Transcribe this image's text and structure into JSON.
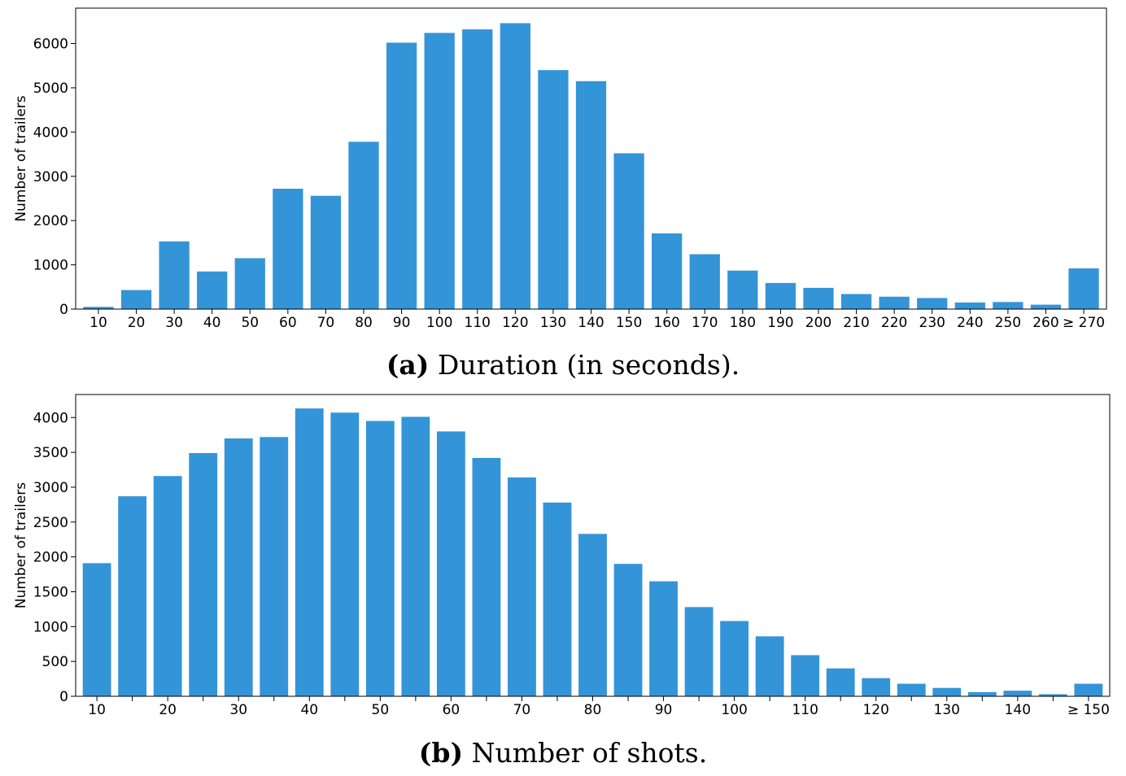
{
  "chart_data": [
    {
      "type": "bar",
      "caption_tag": "(a)",
      "caption_text": "Duration (in seconds).",
      "ylabel": "Number of trailers",
      "xlabel": "",
      "ylim": [
        0,
        6800
      ],
      "yticks": [
        0,
        1000,
        2000,
        3000,
        4000,
        5000,
        6000
      ],
      "bar_color": "#3494d8",
      "categories": [
        "10",
        "20",
        "30",
        "40",
        "50",
        "60",
        "70",
        "80",
        "90",
        "100",
        "110",
        "120",
        "130",
        "140",
        "150",
        "160",
        "170",
        "180",
        "190",
        "200",
        "210",
        "220",
        "230",
        "240",
        "250",
        "260",
        "≥ 270"
      ],
      "tick_labels": [
        "10",
        "20",
        "30",
        "40",
        "50",
        "60",
        "70",
        "80",
        "90",
        "100",
        "110",
        "120",
        "130",
        "140",
        "150",
        "160",
        "170",
        "180",
        "190",
        "200",
        "210",
        "220",
        "230",
        "240",
        "250",
        "260",
        "≥ 270"
      ],
      "values": [
        50,
        430,
        1530,
        850,
        1150,
        2720,
        2560,
        3780,
        6020,
        6240,
        6320,
        6460,
        5400,
        5150,
        3520,
        1710,
        1240,
        870,
        590,
        480,
        340,
        280,
        250,
        150,
        160,
        100,
        920
      ]
    },
    {
      "type": "bar",
      "caption_tag": "(b)",
      "caption_text": "Number of shots.",
      "ylabel": "Number of trailers",
      "xlabel": "",
      "ylim": [
        0,
        4330
      ],
      "yticks": [
        0,
        500,
        1000,
        1500,
        2000,
        2500,
        3000,
        3500,
        4000
      ],
      "bar_color": "#3494d8",
      "categories": [
        "10",
        "15",
        "20",
        "25",
        "30",
        "35",
        "40",
        "45",
        "50",
        "55",
        "60",
        "65",
        "70",
        "75",
        "80",
        "85",
        "90",
        "95",
        "100",
        "105",
        "110",
        "115",
        "120",
        "125",
        "130",
        "135",
        "140",
        "145",
        "≥ 150"
      ],
      "tick_labels": [
        "10",
        "",
        "20",
        "",
        "30",
        "",
        "40",
        "",
        "50",
        "",
        "60",
        "",
        "70",
        "",
        "80",
        "",
        "90",
        "",
        "100",
        "",
        "110",
        "",
        "120",
        "",
        "130",
        "",
        "140",
        "",
        "≥ 150"
      ],
      "values": [
        1910,
        2870,
        3160,
        3490,
        3700,
        3720,
        4130,
        4070,
        3950,
        4010,
        3800,
        3420,
        3140,
        2780,
        2330,
        1900,
        1650,
        1280,
        1080,
        860,
        590,
        400,
        260,
        180,
        120,
        60,
        80,
        30,
        180
      ]
    }
  ]
}
